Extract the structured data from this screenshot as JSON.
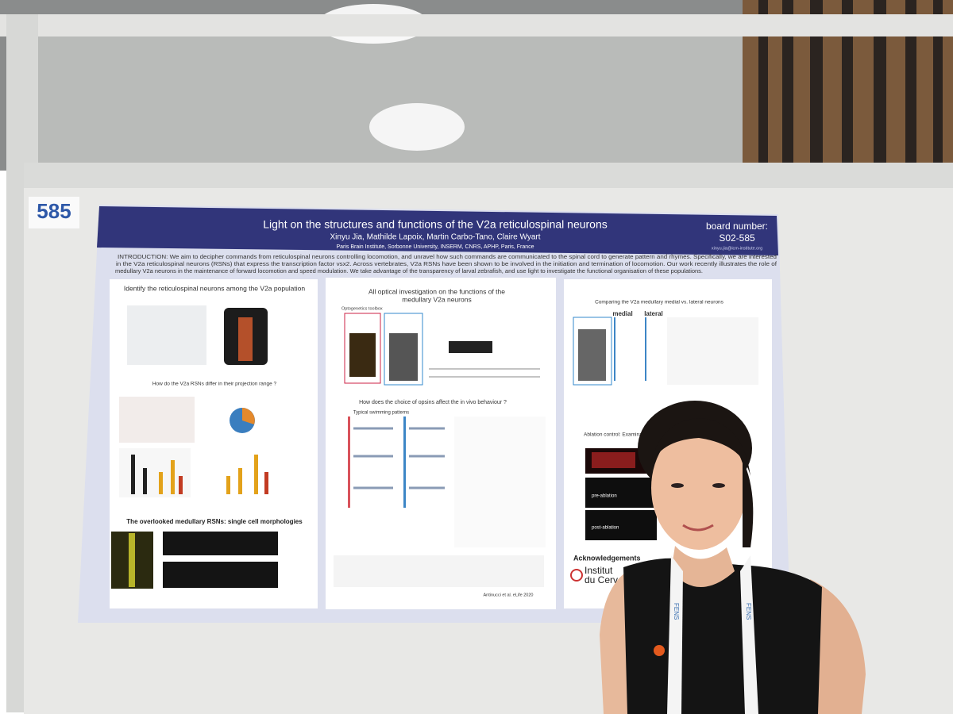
{
  "board_label": "585",
  "poster": {
    "title": "Light on the structures and functions of the V2a reticulospinal neurons",
    "authors": "Xinyu Jia, Mathilde Lapoix, Martin Carbo-Tano, Claire Wyart",
    "affiliation": "Paris Brain Institute, Sorbonne University, INSERM, CNRS, APHP, Paris, France",
    "board_number_label": "board number:",
    "board_number": "S02-585",
    "email": "xinyu.jia@icm-institute.org",
    "intro_lines": [
      "INTRODUCTION: We aim to decipher commands from reticulospinal neurons controlling locomotion, and unravel how such commands are communicated to the spinal cord to generate pattern and rhymes. Specifically, we are interested",
      "in the V2a reticulospinal neurons (RSNs) that express the transcription factor vsx2. Across vertebrates, V2a RSNs have been shown to be involved in the initiation and termination of locomotion. Our work recently illustrates the role of",
      "medullary V2a neurons in the maintenance of forward locomotion and speed modulation. We take advantage of the transparency of larval zebrafish, and use light to investigate the functional organisation of these populations."
    ],
    "col1": [
      "Identify the reticulospinal neurons among the V2a population",
      "How do the V2a RSNs differ in their projection range ?",
      "The overlooked medullary RSNs: single cell morphologies"
    ],
    "col2": [
      "All optical investigation on the functions of the",
      "medullary V2a neurons",
      "Optogenetics toolbox",
      "How does the choice of opsins affect the in vivo behaviour ?",
      "Typical swimming patterns",
      "Antinucci et al. eLife 2020"
    ],
    "col3": [
      "Comparing the V2a medullary medial vs. lateral neurons",
      "medial",
      "lateral",
      "Ablation control: Examinati",
      "pre-ablation",
      "post-ablation",
      "Acknowledgements",
      "Institut",
      "du Cerveau"
    ]
  },
  "lanyard": "FENS"
}
